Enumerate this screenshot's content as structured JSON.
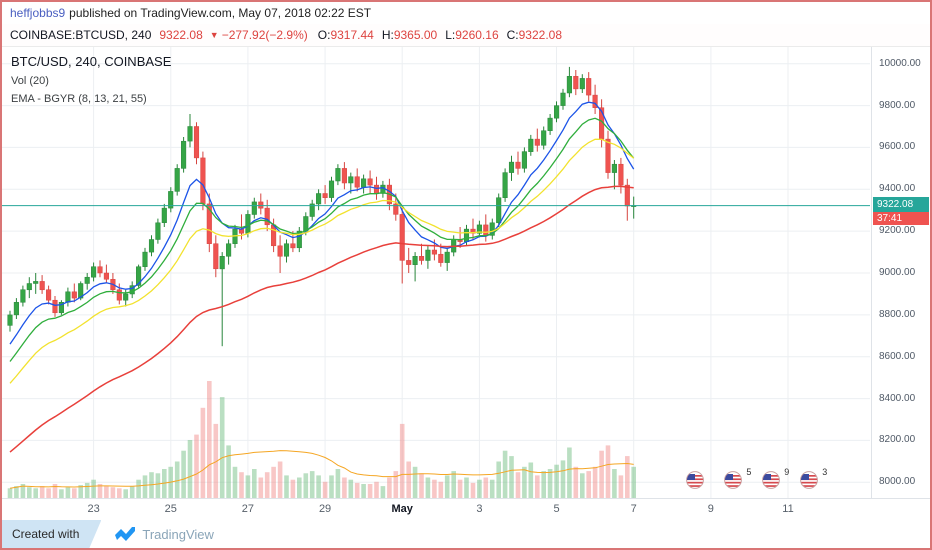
{
  "header": {
    "username": "heffjobbs9",
    "published_text": "published on TradingView.com, May 07, 2018 02:22 EST"
  },
  "symbol_bar": {
    "symbol": "COINBASE:BTCUSD, 240",
    "last_price": "9322.08",
    "direction_icon": "▼",
    "change": "−277.92",
    "change_pct": "(−2.9%)",
    "ohlc": [
      {
        "label": "O:",
        "value": "9317.44"
      },
      {
        "label": "H:",
        "value": "9365.00"
      },
      {
        "label": "L:",
        "value": "9260.16"
      },
      {
        "label": "C:",
        "value": "9322.08"
      }
    ]
  },
  "legend": {
    "title": "BTC/USD, 240, COINBASE",
    "volume": "Vol (20)",
    "ema": "EMA - BGYR (8, 13, 21, 55)"
  },
  "price_axis": {
    "last_price_label": "9322.08",
    "countdown": "37:41"
  },
  "watermark": {
    "created_with": "Created with",
    "brand": "TradingView"
  },
  "events": [
    {
      "i": 106.5,
      "count": ""
    },
    {
      "i": 112.5,
      "count": "5"
    },
    {
      "i": 118.4,
      "count": "9"
    },
    {
      "i": 124.3,
      "count": "3"
    }
  ],
  "colors": {
    "up": "#35a546",
    "up_border": "#28853a",
    "down": "#ef5350",
    "down_border": "#d64540",
    "vol_up": "rgba(103,183,120,0.45)",
    "vol_down": "rgba(239,131,128,0.45)",
    "grid": "#eceff2",
    "price_line": "#26a69a",
    "price_tag_bg": "#26a69a",
    "countdown_bg": "#ef5350"
  },
  "chart_data": {
    "type": "candlestick",
    "symbol": "BTC/USD",
    "interval": "240",
    "exchange": "COINBASE",
    "title": "BTC/USD, 240, COINBASE",
    "ylim": [
      7920,
      10080
    ],
    "price_ticks": [
      "10000.00",
      "9800.00",
      "9600.00",
      "9400.00",
      "9200.00",
      "9000.00",
      "8800.00",
      "8600.00",
      "8400.00",
      "8200.00",
      "8000.00"
    ],
    "time_ticks": [
      {
        "label": "23",
        "i": 13
      },
      {
        "label": "25",
        "i": 25
      },
      {
        "label": "27",
        "i": 37
      },
      {
        "label": "29",
        "i": 49
      },
      {
        "label": "May",
        "i": 61,
        "bold": true
      },
      {
        "label": "3",
        "i": 73
      },
      {
        "label": "5",
        "i": 85
      },
      {
        "label": "7",
        "i": 97
      },
      {
        "label": "9",
        "i": 109
      },
      {
        "label": "11",
        "i": 121
      }
    ],
    "last_price": 9322.08,
    "overlays": [
      {
        "name": "EMA 8",
        "period": 8,
        "seed": 8620,
        "color": "#1c54e8",
        "width": 1.3
      },
      {
        "name": "EMA 13",
        "period": 13,
        "seed": 8540,
        "color": "#2fae3c",
        "width": 1.3
      },
      {
        "name": "EMA 21",
        "period": 21,
        "seed": 8440,
        "color": "#f2e22e",
        "width": 1.3
      },
      {
        "name": "EMA 55",
        "period": 55,
        "seed": 8120,
        "color": "#e8403b",
        "width": 1.5
      }
    ],
    "volume_ma": {
      "period": 20,
      "color": "#f5a623"
    },
    "candles": [
      [
        8750,
        8820,
        8720,
        8800,
        10
      ],
      [
        8800,
        8880,
        8780,
        8860,
        12
      ],
      [
        8860,
        8940,
        8840,
        8920,
        14
      ],
      [
        8920,
        8980,
        8880,
        8950,
        11
      ],
      [
        8950,
        9000,
        8900,
        8960,
        10
      ],
      [
        8960,
        8990,
        8900,
        8920,
        12
      ],
      [
        8920,
        8940,
        8850,
        8870,
        10
      ],
      [
        8870,
        8890,
        8790,
        8810,
        14
      ],
      [
        8810,
        8870,
        8800,
        8860,
        9
      ],
      [
        8860,
        8930,
        8840,
        8910,
        11
      ],
      [
        8910,
        8950,
        8860,
        8880,
        10
      ],
      [
        8880,
        8960,
        8870,
        8950,
        13
      ],
      [
        8950,
        9000,
        8920,
        8980,
        15
      ],
      [
        8980,
        9050,
        8960,
        9030,
        18
      ],
      [
        9030,
        9060,
        8980,
        9000,
        14
      ],
      [
        9000,
        9040,
        8950,
        8970,
        12
      ],
      [
        8970,
        9000,
        8900,
        8920,
        11
      ],
      [
        8920,
        8950,
        8850,
        8870,
        10
      ],
      [
        8870,
        8920,
        8840,
        8900,
        9
      ],
      [
        8900,
        8960,
        8880,
        8940,
        12
      ],
      [
        8940,
        9040,
        8930,
        9030,
        18
      ],
      [
        9030,
        9120,
        9010,
        9100,
        22
      ],
      [
        9100,
        9180,
        9080,
        9160,
        25
      ],
      [
        9160,
        9260,
        9140,
        9240,
        24
      ],
      [
        9240,
        9330,
        9220,
        9310,
        28
      ],
      [
        9310,
        9410,
        9290,
        9390,
        30
      ],
      [
        9390,
        9520,
        9370,
        9500,
        35
      ],
      [
        9500,
        9650,
        9480,
        9630,
        45
      ],
      [
        9630,
        9760,
        9600,
        9700,
        55
      ],
      [
        9700,
        9720,
        9520,
        9550,
        60
      ],
      [
        9550,
        9580,
        9300,
        9330,
        85
      ],
      [
        9330,
        9380,
        9100,
        9140,
        110
      ],
      [
        9140,
        9180,
        8980,
        9020,
        70
      ],
      [
        9020,
        9100,
        8650,
        9080,
        95
      ],
      [
        9080,
        9160,
        9040,
        9140,
        50
      ],
      [
        9140,
        9230,
        9120,
        9210,
        30
      ],
      [
        9210,
        9280,
        9160,
        9190,
        25
      ],
      [
        9190,
        9300,
        9170,
        9280,
        22
      ],
      [
        9280,
        9360,
        9260,
        9340,
        28
      ],
      [
        9340,
        9380,
        9280,
        9310,
        20
      ],
      [
        9310,
        9350,
        9200,
        9230,
        25
      ],
      [
        9230,
        9260,
        9100,
        9130,
        30
      ],
      [
        9130,
        9180,
        9000,
        9080,
        35
      ],
      [
        9080,
        9160,
        9050,
        9140,
        22
      ],
      [
        9140,
        9200,
        9100,
        9120,
        18
      ],
      [
        9120,
        9220,
        9100,
        9200,
        20
      ],
      [
        9200,
        9290,
        9180,
        9270,
        24
      ],
      [
        9270,
        9350,
        9250,
        9330,
        26
      ],
      [
        9330,
        9400,
        9300,
        9380,
        22
      ],
      [
        9380,
        9420,
        9330,
        9360,
        16
      ],
      [
        9360,
        9460,
        9340,
        9440,
        22
      ],
      [
        9440,
        9520,
        9420,
        9500,
        28
      ],
      [
        9500,
        9530,
        9400,
        9430,
        20
      ],
      [
        9430,
        9480,
        9380,
        9460,
        18
      ],
      [
        9460,
        9500,
        9390,
        9410,
        15
      ],
      [
        9410,
        9470,
        9380,
        9450,
        14
      ],
      [
        9450,
        9490,
        9380,
        9420,
        14
      ],
      [
        9420,
        9460,
        9350,
        9380,
        16
      ],
      [
        9380,
        9440,
        9360,
        9420,
        12
      ],
      [
        9420,
        9450,
        9300,
        9330,
        20
      ],
      [
        9330,
        9380,
        9250,
        9280,
        26
      ],
      [
        9280,
        9310,
        8950,
        9060,
        70
      ],
      [
        9060,
        9120,
        9000,
        9040,
        35
      ],
      [
        9040,
        9100,
        8960,
        9080,
        30
      ],
      [
        9080,
        9140,
        9040,
        9060,
        24
      ],
      [
        9060,
        9130,
        9020,
        9110,
        20
      ],
      [
        9110,
        9160,
        9060,
        9090,
        18
      ],
      [
        9090,
        9140,
        9030,
        9050,
        16
      ],
      [
        9050,
        9120,
        9010,
        9100,
        22
      ],
      [
        9100,
        9180,
        9080,
        9160,
        26
      ],
      [
        9160,
        9220,
        9120,
        9150,
        18
      ],
      [
        9150,
        9230,
        9130,
        9210,
        20
      ],
      [
        9210,
        9260,
        9160,
        9190,
        15
      ],
      [
        9190,
        9250,
        9170,
        9230,
        18
      ],
      [
        9230,
        9280,
        9150,
        9180,
        20
      ],
      [
        9180,
        9260,
        9160,
        9240,
        18
      ],
      [
        9240,
        9380,
        9220,
        9360,
        35
      ],
      [
        9360,
        9500,
        9340,
        9480,
        45
      ],
      [
        9480,
        9560,
        9440,
        9530,
        40
      ],
      [
        9530,
        9580,
        9470,
        9500,
        25
      ],
      [
        9500,
        9600,
        9480,
        9580,
        30
      ],
      [
        9580,
        9660,
        9560,
        9640,
        34
      ],
      [
        9640,
        9690,
        9580,
        9610,
        22
      ],
      [
        9610,
        9700,
        9590,
        9680,
        26
      ],
      [
        9680,
        9760,
        9660,
        9740,
        28
      ],
      [
        9740,
        9820,
        9720,
        9800,
        32
      ],
      [
        9800,
        9880,
        9780,
        9860,
        36
      ],
      [
        9860,
        9985,
        9840,
        9940,
        48
      ],
      [
        9940,
        9970,
        9850,
        9880,
        30
      ],
      [
        9880,
        9950,
        9860,
        9930,
        24
      ],
      [
        9930,
        9960,
        9820,
        9850,
        26
      ],
      [
        9850,
        9900,
        9760,
        9790,
        30
      ],
      [
        9790,
        9830,
        9600,
        9640,
        45
      ],
      [
        9640,
        9680,
        9450,
        9480,
        50
      ],
      [
        9480,
        9540,
        9400,
        9520,
        28
      ],
      [
        9520,
        9550,
        9380,
        9420,
        22
      ],
      [
        9420,
        9450,
        9250,
        9320,
        40
      ],
      [
        9317.44,
        9365,
        9260.16,
        9322.08,
        30
      ]
    ]
  }
}
